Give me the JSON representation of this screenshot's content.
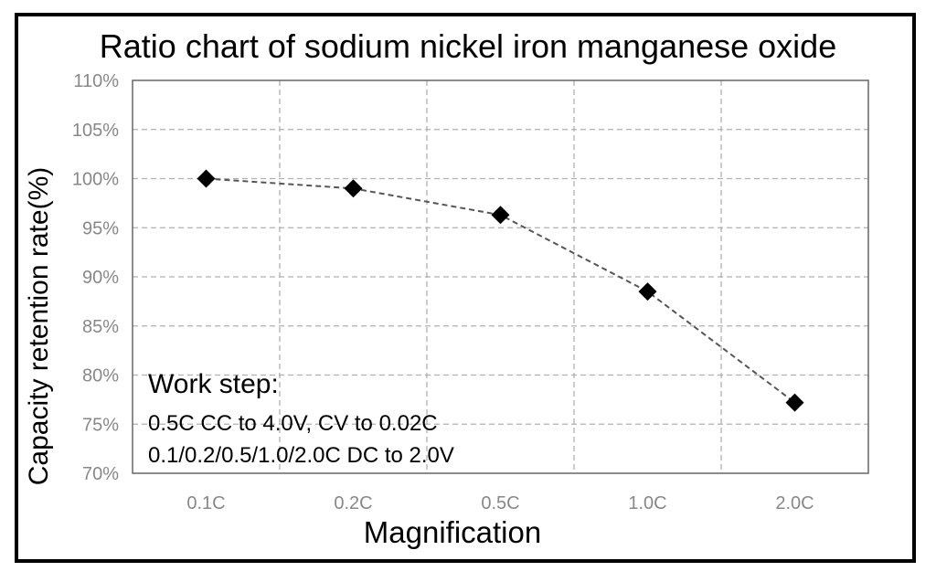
{
  "chart_data": {
    "type": "line",
    "title": "Ratio chart of sodium nickel iron manganese oxide",
    "xlabel": "Magnification",
    "ylabel": "Capacity retention rate(%)",
    "categories": [
      "0.1C",
      "0.2C",
      "0.5C",
      "1.0C",
      "2.0C"
    ],
    "series": [
      {
        "values": [
          100,
          99,
          96.3,
          88.5,
          77.2
        ]
      }
    ],
    "ylim": [
      70,
      110
    ],
    "yticks": [
      70,
      75,
      80,
      85,
      90,
      95,
      100,
      105,
      110
    ],
    "ytick_labels": [
      "70%",
      "75%",
      "80%",
      "85%",
      "90%",
      "95%",
      "100%",
      "105%",
      "110%"
    ],
    "grid": true,
    "line_style": "dashed",
    "marker": "diamond",
    "colors": {
      "line": "#555555",
      "marker": "#000000",
      "grid": "#b0b0b0",
      "tick_text": "#888888"
    },
    "annotation": {
      "heading": "Work step:",
      "lines": [
        "0.5C CC to 4.0V, CV to 0.02C",
        "0.1/0.2/0.5/1.0/2.0C DC to 2.0V"
      ]
    }
  }
}
